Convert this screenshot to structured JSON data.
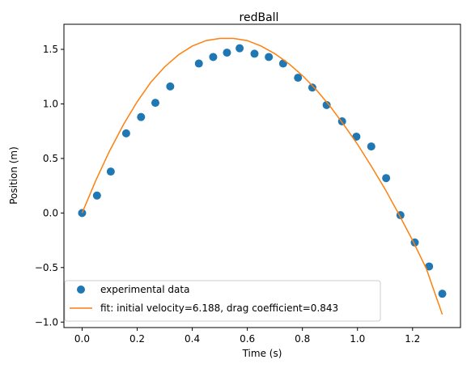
{
  "chart_data": {
    "type": "scatter",
    "title": "redBall",
    "xlabel": "Time (s)",
    "ylabel": "Position (m)",
    "xlim": [
      -0.066,
      1.374
    ],
    "ylim": [
      -1.05,
      1.73
    ],
    "grid": false,
    "legend_position": "lower-left",
    "x_ticks": [
      0.0,
      0.2,
      0.4,
      0.6,
      0.8,
      1.0,
      1.2
    ],
    "x_tick_labels": [
      "0.0",
      "0.2",
      "0.4",
      "0.6",
      "0.8",
      "1.0",
      "1.2"
    ],
    "y_ticks": [
      -1.0,
      -0.5,
      0.0,
      0.5,
      1.0,
      1.5
    ],
    "y_tick_labels": [
      "−1.0",
      "−0.5",
      "0.0",
      "0.5",
      "1.0",
      "1.5"
    ],
    "series": [
      {
        "name": "experimental data",
        "kind": "scatter",
        "color": "#1f77b4",
        "x": [
          0.0,
          0.054,
          0.104,
          0.16,
          0.214,
          0.266,
          0.32,
          0.424,
          0.476,
          0.526,
          0.572,
          0.626,
          0.678,
          0.73,
          0.784,
          0.836,
          0.888,
          0.944,
          0.996,
          1.05,
          1.104,
          1.156,
          1.208,
          1.26,
          1.308
        ],
        "y": [
          0.0,
          0.16,
          0.38,
          0.73,
          0.88,
          1.01,
          1.16,
          1.37,
          1.43,
          1.47,
          1.51,
          1.46,
          1.43,
          1.37,
          1.24,
          1.15,
          0.99,
          0.84,
          0.7,
          0.61,
          0.32,
          -0.02,
          -0.27,
          -0.49,
          -0.74
        ]
      },
      {
        "name": "fit: initial velocity=6.188, drag coefficient=0.843",
        "kind": "line",
        "color": "#ff7f0e",
        "x": [
          0.0,
          0.05,
          0.1,
          0.15,
          0.2,
          0.25,
          0.3,
          0.35,
          0.4,
          0.45,
          0.5,
          0.55,
          0.6,
          0.65,
          0.7,
          0.75,
          0.8,
          0.85,
          0.9,
          0.95,
          1.0,
          1.05,
          1.1,
          1.15,
          1.2,
          1.25,
          1.308
        ],
        "y": [
          0.0,
          0.3,
          0.57,
          0.81,
          1.02,
          1.2,
          1.34,
          1.45,
          1.53,
          1.58,
          1.6,
          1.6,
          1.58,
          1.53,
          1.46,
          1.37,
          1.26,
          1.13,
          0.98,
          0.81,
          0.63,
          0.43,
          0.22,
          -0.01,
          -0.25,
          -0.51,
          -0.93
        ]
      }
    ]
  }
}
